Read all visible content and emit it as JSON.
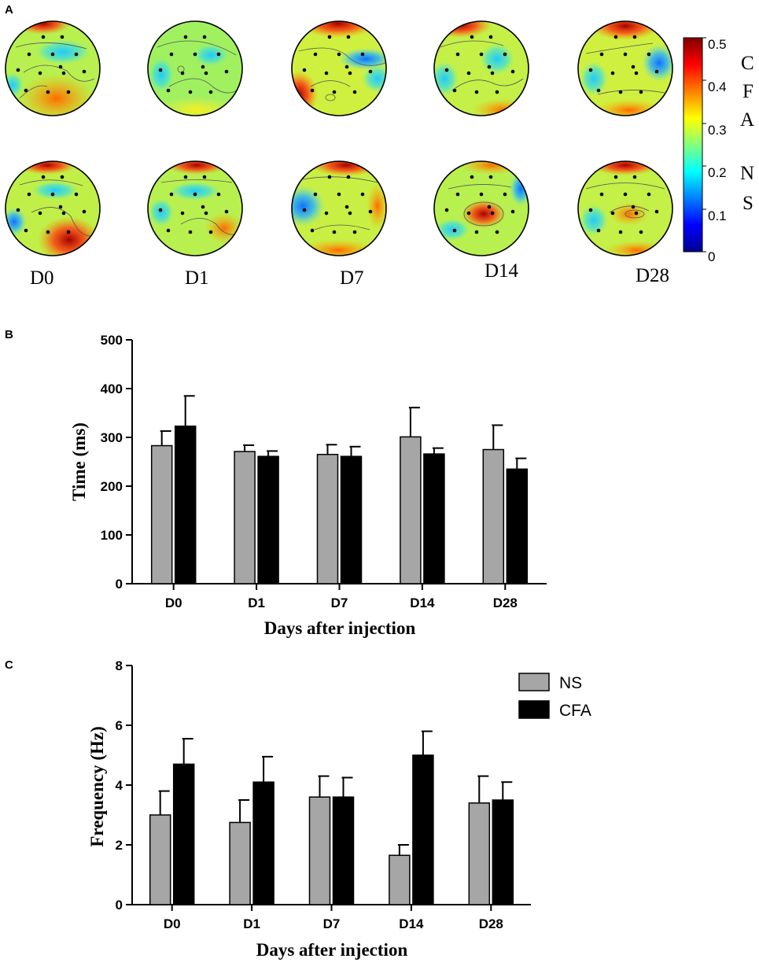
{
  "panels": {
    "a": "A",
    "b": "B",
    "c": "C"
  },
  "heatmap": {
    "day_labels": [
      "D0",
      "D1",
      "D7",
      "D14",
      "D28"
    ],
    "rows": [
      "CFA",
      "NS"
    ],
    "colorbar": {
      "min": 0,
      "max": 0.5,
      "tick_labels": [
        "0.5",
        "0.4",
        "0.3",
        "0.2",
        "0.1",
        "0"
      ],
      "cfa_letters": [
        "C",
        "F",
        "A"
      ],
      "ns_letters": [
        "N",
        "S"
      ]
    }
  },
  "chart_data": [
    {
      "type": "bar",
      "panel": "B",
      "categories": [
        "D0",
        "D1",
        "D7",
        "D14",
        "D28"
      ],
      "series": [
        {
          "name": "NS",
          "color": "#a6a6a6",
          "values": [
            283,
            271,
            265,
            301,
            275
          ],
          "errors": [
            30,
            13,
            20,
            60,
            50
          ]
        },
        {
          "name": "CFA",
          "color": "#000000",
          "values": [
            323,
            261,
            261,
            266,
            235
          ],
          "errors": [
            62,
            11,
            20,
            12,
            22
          ]
        }
      ],
      "xlabel": "Days after injection",
      "ylabel": "Time (ms)",
      "ylim": [
        0,
        500
      ],
      "yticks": [
        0,
        100,
        200,
        300,
        400,
        500
      ]
    },
    {
      "type": "bar",
      "panel": "C",
      "categories": [
        "D0",
        "D1",
        "D7",
        "D14",
        "D28"
      ],
      "series": [
        {
          "name": "NS",
          "color": "#a6a6a6",
          "values": [
            3.0,
            2.75,
            3.6,
            1.65,
            3.4
          ],
          "errors": [
            0.8,
            0.75,
            0.7,
            0.35,
            0.9
          ]
        },
        {
          "name": "CFA",
          "color": "#000000",
          "values": [
            4.7,
            4.1,
            3.6,
            5.0,
            3.5
          ],
          "errors": [
            0.85,
            0.85,
            0.65,
            0.8,
            0.6
          ]
        }
      ],
      "xlabel": "Days after injection",
      "ylabel": "Frequency (Hz)",
      "ylim": [
        0,
        8
      ],
      "yticks": [
        0,
        2,
        4,
        6,
        8
      ],
      "legend": [
        "NS",
        "CFA"
      ]
    }
  ]
}
